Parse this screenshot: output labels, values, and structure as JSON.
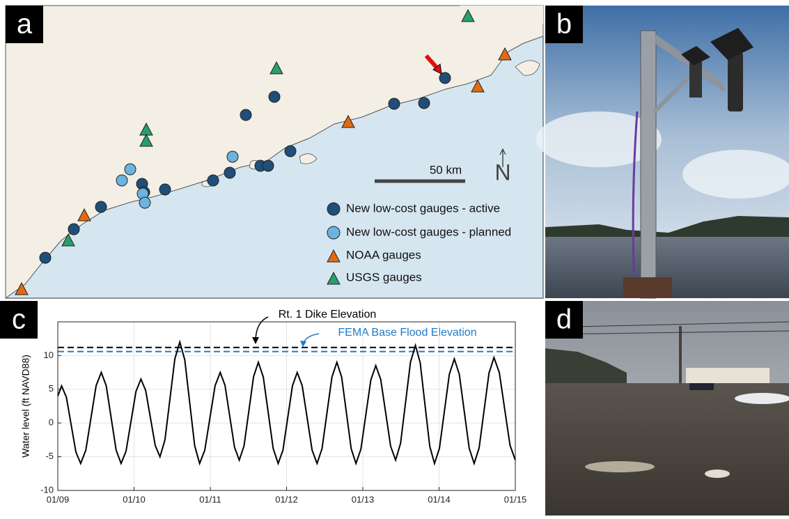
{
  "panel_labels": [
    "a",
    "b",
    "c",
    "d"
  ],
  "map": {
    "scale_label": "50 km",
    "north": "N",
    "legend": [
      "New low-cost gauges - active",
      "New low-cost gauges - planned",
      "NOAA gauges",
      "USGS gauges"
    ]
  },
  "chart_data": {
    "type": "line",
    "ylabel": "Water level (ft NAVD88)",
    "x": [
      0,
      0.05,
      0.1125,
      0.175,
      0.2375,
      0.3,
      0.3675,
      0.435,
      0.5025,
      0.57,
      0.635,
      0.7,
      0.765,
      0.83,
      0.895,
      0.96,
      1.025,
      1.09,
      1.1525,
      1.215,
      1.2775,
      1.34,
      1.405,
      1.47,
      1.535,
      1.6,
      1.665,
      1.73,
      1.795,
      1.86,
      1.9275,
      1.995,
      2.0625,
      2.13,
      2.1925,
      2.255,
      2.3175,
      2.38,
      2.4425,
      2.505,
      2.5675,
      2.63,
      2.695,
      2.76,
      2.825,
      2.89,
      2.9525,
      3.015,
      3.0775,
      3.14,
      3.205,
      3.27,
      3.335,
      3.4,
      3.465,
      3.53,
      3.595,
      3.66,
      3.7225,
      3.785,
      3.8475,
      3.91,
      3.975,
      4.04,
      4.105,
      4.17,
      4.235,
      4.3,
      4.365,
      4.43,
      4.495,
      4.56,
      4.625,
      4.69,
      4.7525,
      4.815,
      4.8775,
      4.94,
      5.005,
      5.07,
      5.135,
      5.2,
      5.265,
      5.33,
      5.395,
      5.46,
      5.525,
      5.59,
      5.655,
      5.72,
      5.79,
      5.86,
      5.93,
      6.0
    ],
    "series": [
      {
        "color": "#000000",
        "values": [
          4,
          5.5,
          3.82,
          -0.25,
          -4.32,
          -6,
          -4.03,
          0.75,
          5.53,
          7.5,
          5.53,
          0.75,
          -4.03,
          -6,
          -4.18,
          0.25,
          4.68,
          6.5,
          4.82,
          0.75,
          -3.32,
          -5,
          -2.52,
          3.5,
          9.52,
          12,
          9.37,
          3,
          -3.37,
          -6,
          -4.03,
          0.75,
          5.53,
          7.5,
          5.6,
          1,
          -3.6,
          -5.5,
          -3.38,
          1.75,
          6.88,
          9,
          6.81,
          1.5,
          -3.81,
          -6,
          -4.03,
          0.75,
          5.53,
          7.5,
          5.53,
          0.75,
          -4.03,
          -6,
          -3.81,
          1.5,
          6.81,
          9,
          6.81,
          1.5,
          -3.81,
          -6,
          -3.88,
          1.25,
          6.38,
          8.5,
          6.46,
          1.5,
          -3.46,
          -5.5,
          -3.02,
          3,
          9.02,
          11.5,
          8.94,
          2.75,
          -3.44,
          -6,
          -3.74,
          1.75,
          7.24,
          9.5,
          7.24,
          1.75,
          -3.74,
          -6,
          -3.71,
          1.85,
          7.41,
          9.7,
          7.48,
          2.1,
          -3.28,
          -5.5
        ]
      }
    ],
    "reference_lines": [
      {
        "label": "Rt. 1 Dike Elevation",
        "value": 11.2,
        "color": "#000000"
      },
      {
        "label": "FEMA Base Flood Elevation",
        "value": 10.6,
        "color": "#1f7ac4"
      }
    ],
    "xlim": [
      0,
      6
    ],
    "xticks": [
      {
        "value": 0,
        "label": "01/09"
      },
      {
        "value": 1,
        "label": "01/10"
      },
      {
        "value": 2,
        "label": "01/11"
      },
      {
        "value": 3,
        "label": "01/12"
      },
      {
        "value": 4,
        "label": "01/13"
      },
      {
        "value": 5,
        "label": "01/14"
      },
      {
        "value": 6,
        "label": "01/15"
      }
    ],
    "ylim": [
      -10,
      15
    ],
    "yticks": [
      -10,
      -5,
      0,
      5,
      10
    ],
    "grid": true
  }
}
